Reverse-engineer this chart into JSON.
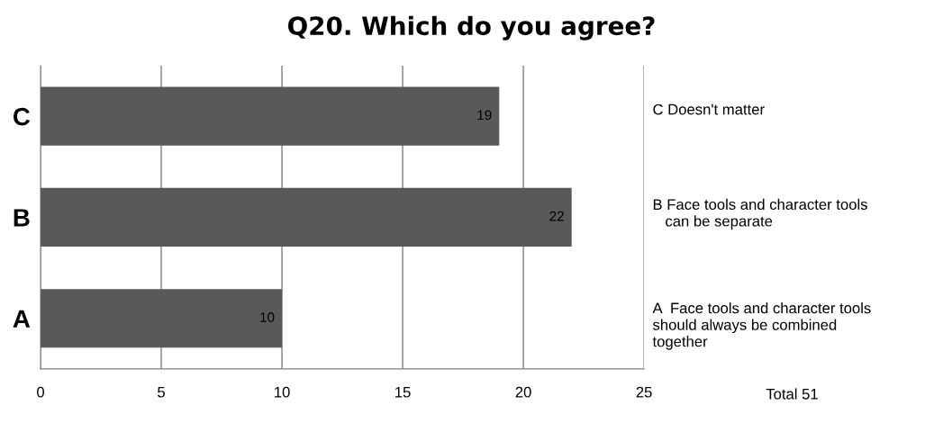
{
  "chart_data": {
    "type": "bar",
    "orientation": "horizontal",
    "title": "Q20. Which do you agree?",
    "categories": [
      "C",
      "B",
      "A"
    ],
    "values": [
      19,
      22,
      10
    ],
    "color": "#595959",
    "xlim": [
      0,
      25
    ],
    "xticks": [
      0,
      5,
      10,
      15,
      20,
      25
    ],
    "grid": "x",
    "data_labels": true,
    "annotations": [
      "C Doesn't matter",
      "B Face tools and character tools\n   can be separate",
      "A  Face tools and character tools\nshould always be combined\ntogether",
      "Total 51"
    ]
  }
}
